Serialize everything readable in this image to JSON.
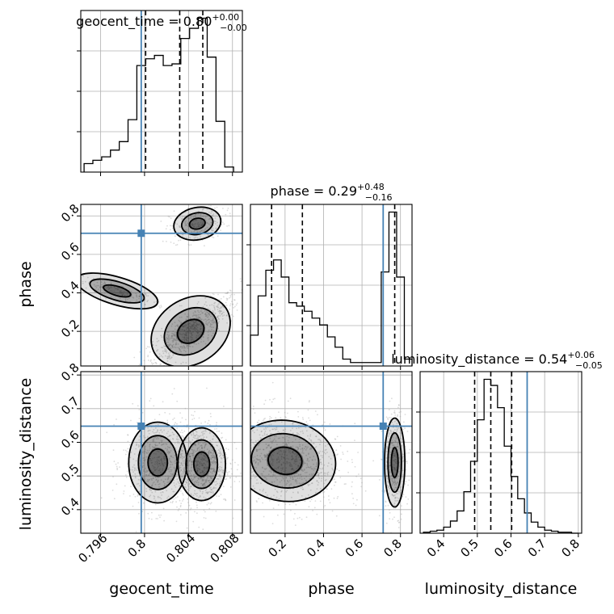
{
  "figure": {
    "type": "corner-plot",
    "parameters": [
      "geocent_time",
      "phase",
      "luminosity_distance"
    ]
  },
  "colors": {
    "truth": "#4682b4",
    "histogram": "#000000",
    "contour": "#000000",
    "scatter": "#9a9a9a",
    "grid": "#b0b0b0"
  },
  "chart_data": [
    {
      "id": "hist-geocent_time",
      "type": "histogram",
      "title_main": "geocent_time = 0.80",
      "title_sup": "+0.00",
      "title_sub": "−0.00",
      "xlim": [
        0.7942,
        0.8089
      ],
      "x_ticks": [
        0.796,
        0.8,
        0.804,
        0.808
      ],
      "bin_edges": [
        0.7945,
        0.7953,
        0.7961,
        0.7969,
        0.7977,
        0.7985,
        0.7993,
        0.8001,
        0.8009,
        0.8017,
        0.8025,
        0.8033,
        0.8041,
        0.8049,
        0.8057,
        0.8065,
        0.8073,
        0.8081
      ],
      "counts": [
        5,
        7,
        9,
        13,
        18,
        31,
        63,
        67,
        69,
        63,
        64,
        79,
        85,
        91,
        68,
        30,
        3
      ],
      "quantile_lines": [
        0.8001,
        0.8032,
        0.8053
      ],
      "truth": 0.7997
    },
    {
      "id": "scatter-phase-vs-geocent_time",
      "type": "2d-density",
      "x": "geocent_time",
      "y": "phase",
      "xlim": [
        0.7942,
        0.8089
      ],
      "ylim": [
        0.02,
        0.86
      ],
      "y_ticks": [
        0.2,
        0.4,
        0.6,
        0.8
      ],
      "ylabel": "phase",
      "truth": [
        0.7997,
        0.71
      ],
      "clusters": [
        {
          "cx": 0.8042,
          "cy": 0.2,
          "sx": 0.0016,
          "sy": 0.07,
          "rho": 0.85,
          "weight": 0.5
        },
        {
          "cx": 0.8048,
          "cy": 0.76,
          "sx": 0.0009,
          "sy": 0.035,
          "rho": 0.3,
          "weight": 0.18
        },
        {
          "cx": 0.7975,
          "cy": 0.41,
          "sx": 0.0016,
          "sy": 0.03,
          "rho": -0.9,
          "weight": 0.12
        }
      ],
      "contour_levels": [
        0.5,
        1.0,
        1.5
      ]
    },
    {
      "id": "hist-phase",
      "type": "histogram",
      "title_main": "phase = 0.29",
      "title_sup": "+0.48",
      "title_sub": "−0.16",
      "xlim": [
        0.02,
        0.86
      ],
      "x_ticks": [
        0.2,
        0.4,
        0.6,
        0.8
      ],
      "bin_edges": [
        0.02,
        0.06,
        0.1,
        0.14,
        0.18,
        0.22,
        0.26,
        0.3,
        0.34,
        0.38,
        0.42,
        0.46,
        0.5,
        0.54,
        0.58,
        0.62,
        0.66,
        0.7,
        0.74,
        0.78,
        0.82,
        0.86
      ],
      "counts": [
        18,
        41,
        56,
        62,
        52,
        37,
        35,
        32,
        28,
        24,
        17,
        11,
        4,
        2,
        2,
        2,
        2,
        55,
        90,
        52,
        4
      ],
      "quantile_lines": [
        0.13,
        0.29,
        0.77
      ],
      "truth": 0.71
    },
    {
      "id": "scatter-luminosity_distance-vs-geocent_time",
      "type": "2d-density",
      "x": "geocent_time",
      "y": "luminosity_distance",
      "xlim": [
        0.7942,
        0.8089
      ],
      "ylim": [
        0.33,
        0.81
      ],
      "x_ticks": [
        0.796,
        0.8,
        0.804,
        0.808
      ],
      "y_ticks": [
        0.4,
        0.5,
        0.6,
        0.7,
        0.8
      ],
      "xlabel": "geocent_time",
      "ylabel": "luminosity_distance",
      "truth": [
        0.7997,
        0.648
      ],
      "clusters": [
        {
          "cx": 0.8012,
          "cy": 0.54,
          "sx": 0.0011,
          "sy": 0.05,
          "rho": 0,
          "weight": 0.45
        },
        {
          "cx": 0.8052,
          "cy": 0.535,
          "sx": 0.0009,
          "sy": 0.045,
          "rho": 0,
          "weight": 0.55
        }
      ],
      "contour_levels": [
        0.5,
        1.0,
        1.5
      ]
    },
    {
      "id": "scatter-luminosity_distance-vs-phase",
      "type": "2d-density",
      "x": "phase",
      "y": "luminosity_distance",
      "xlim": [
        0.02,
        0.86
      ],
      "ylim": [
        0.33,
        0.81
      ],
      "x_ticks": [
        0.2,
        0.4,
        0.6,
        0.8
      ],
      "xlabel": "phase",
      "truth": [
        0.71,
        0.648
      ],
      "clusters": [
        {
          "cx": 0.2,
          "cy": 0.545,
          "sx": 0.11,
          "sy": 0.05,
          "rho": -0.2,
          "weight": 0.72
        },
        {
          "cx": 0.77,
          "cy": 0.54,
          "sx": 0.022,
          "sy": 0.055,
          "rho": 0,
          "weight": 0.28
        }
      ],
      "contour_levels": [
        0.5,
        1.0,
        1.5
      ]
    },
    {
      "id": "hist-luminosity_distance",
      "type": "histogram",
      "title_main": "luminosity_distance = 0.54",
      "title_sup": "+0.06",
      "title_sub": "−0.05",
      "xlim": [
        0.33,
        0.81
      ],
      "x_ticks": [
        0.4,
        0.5,
        0.6,
        0.7,
        0.8
      ],
      "xlabel": "luminosity_distance",
      "bin_edges": [
        0.34,
        0.36,
        0.38,
        0.4,
        0.42,
        0.44,
        0.46,
        0.48,
        0.5,
        0.52,
        0.54,
        0.56,
        0.58,
        0.6,
        0.62,
        0.64,
        0.66,
        0.68,
        0.7,
        0.72,
        0.74,
        0.76,
        0.78,
        0.8
      ],
      "counts": [
        1,
        2,
        3,
        6,
        12,
        22,
        41,
        71,
        112,
        152,
        146,
        124,
        86,
        56,
        34,
        20,
        11,
        6,
        3,
        2,
        1,
        1,
        0
      ],
      "quantile_lines": [
        0.492,
        0.54,
        0.602
      ],
      "truth": 0.648
    }
  ]
}
